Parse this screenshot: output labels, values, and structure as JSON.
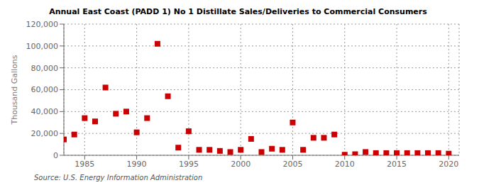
{
  "chart_data": {
    "type": "scatter",
    "title": "Annual East Coast (PADD 1) No 1 Distillate Sales/Deliveries to Commercial Consumers",
    "ylabel": "Thousand Gallons",
    "annotations": [
      "Source: U.S. Energy Information Administration"
    ],
    "x": [
      1983,
      1984,
      1985,
      1986,
      1987,
      1988,
      1989,
      1990,
      1991,
      1992,
      1993,
      1994,
      1995,
      1996,
      1997,
      1998,
      1999,
      2000,
      2001,
      2002,
      2003,
      2004,
      2005,
      2006,
      2007,
      2008,
      2009,
      2010,
      2011,
      2012,
      2013,
      2014,
      2015,
      2016,
      2017,
      2018,
      2019,
      2020
    ],
    "values": [
      14500,
      19000,
      34000,
      31000,
      62000,
      38000,
      40000,
      21000,
      34000,
      102000,
      54000,
      7000,
      22000,
      5000,
      5000,
      4000,
      3000,
      5000,
      15000,
      3000,
      6000,
      5000,
      30000,
      5000,
      16000,
      16000,
      19000,
      500,
      1000,
      3000,
      2000,
      2000,
      2000,
      2000,
      2000,
      2000,
      2000,
      1500
    ],
    "color": "#cc0000",
    "marker": "square",
    "grid": true,
    "xlim": [
      1983,
      2021
    ],
    "xticks": [
      1985,
      1990,
      1995,
      2000,
      2005,
      2010,
      2015,
      2020
    ],
    "ylim": [
      0,
      120000
    ],
    "yticks": [
      0,
      {
        "value": 20000,
        "label": "20,000"
      },
      {
        "value": 40000,
        "label": "40,000"
      },
      {
        "value": 60000,
        "label": "60,000"
      },
      {
        "value": 80000,
        "label": "80,000"
      },
      {
        "value": 100000,
        "label": "100,000"
      },
      {
        "value": 120000,
        "label": "120,000"
      }
    ]
  }
}
